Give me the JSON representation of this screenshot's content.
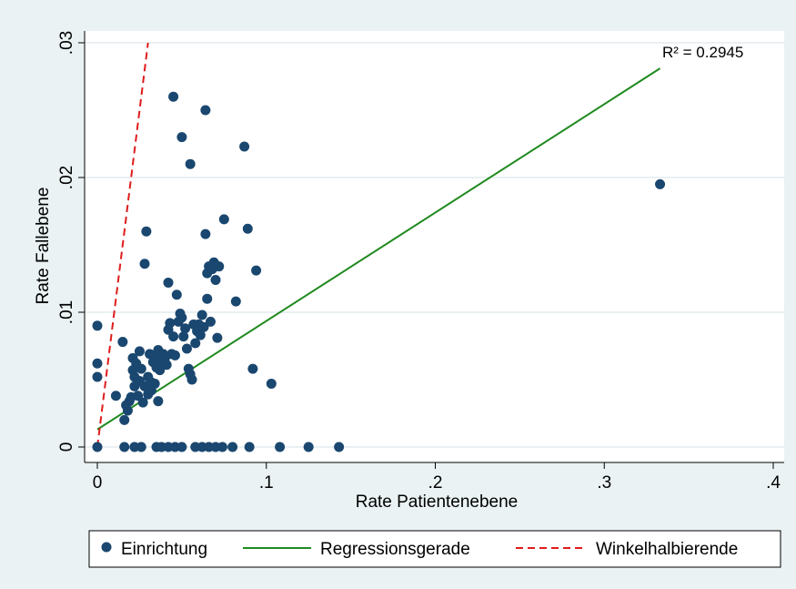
{
  "chart_data": {
    "type": "scatter",
    "xlabel": "Rate Patientenebene",
    "ylabel": "Rate Fallebene",
    "xlim": [
      0,
      0.4
    ],
    "ylim": [
      0,
      0.03
    ],
    "x_ticks": [
      "0",
      ".1",
      ".2",
      ".3",
      ".4"
    ],
    "y_ticks": [
      "0",
      ".01",
      ".02",
      ".03"
    ],
    "annotation": {
      "text": "R² =  0.2945"
    },
    "legend_position": "bottom",
    "series": [
      {
        "name": "Einrichtung",
        "kind": "scatter",
        "color": "#1a476f",
        "points": [
          [
            0.0,
            0.0
          ],
          [
            0.0,
            0.0052
          ],
          [
            0.0,
            0.0062
          ],
          [
            0.0,
            0.009
          ],
          [
            0.016,
            0.0
          ],
          [
            0.022,
            0.0
          ],
          [
            0.026,
            0.0
          ],
          [
            0.035,
            0.0
          ],
          [
            0.038,
            0.0
          ],
          [
            0.042,
            0.0
          ],
          [
            0.046,
            0.0
          ],
          [
            0.05,
            0.0
          ],
          [
            0.058,
            0.0
          ],
          [
            0.062,
            0.0
          ],
          [
            0.066,
            0.0
          ],
          [
            0.07,
            0.0
          ],
          [
            0.074,
            0.0
          ],
          [
            0.08,
            0.0
          ],
          [
            0.09,
            0.0
          ],
          [
            0.108,
            0.0
          ],
          [
            0.125,
            0.0
          ],
          [
            0.143,
            0.0
          ],
          [
            0.011,
            0.0038
          ],
          [
            0.015,
            0.0078
          ],
          [
            0.016,
            0.002
          ],
          [
            0.017,
            0.0031
          ],
          [
            0.018,
            0.0027
          ],
          [
            0.019,
            0.0034
          ],
          [
            0.02,
            0.0037
          ],
          [
            0.021,
            0.0066
          ],
          [
            0.021,
            0.0057
          ],
          [
            0.022,
            0.0052
          ],
          [
            0.022,
            0.0045
          ],
          [
            0.023,
            0.0062
          ],
          [
            0.024,
            0.0038
          ],
          [
            0.025,
            0.0071
          ],
          [
            0.025,
            0.0049
          ],
          [
            0.026,
            0.0058
          ],
          [
            0.027,
            0.0033
          ],
          [
            0.028,
            0.0045
          ],
          [
            0.028,
            0.0136
          ],
          [
            0.029,
            0.016
          ],
          [
            0.03,
            0.0052
          ],
          [
            0.03,
            0.0039
          ],
          [
            0.031,
            0.0069
          ],
          [
            0.032,
            0.0048
          ],
          [
            0.032,
            0.0042
          ],
          [
            0.033,
            0.0063
          ],
          [
            0.034,
            0.0047
          ],
          [
            0.035,
            0.0067
          ],
          [
            0.035,
            0.0059
          ],
          [
            0.036,
            0.0072
          ],
          [
            0.036,
            0.0034
          ],
          [
            0.037,
            0.0063
          ],
          [
            0.037,
            0.0057
          ],
          [
            0.038,
            0.0064
          ],
          [
            0.039,
            0.0069
          ],
          [
            0.04,
            0.0066
          ],
          [
            0.041,
            0.0061
          ],
          [
            0.042,
            0.0087
          ],
          [
            0.042,
            0.0122
          ],
          [
            0.043,
            0.0092
          ],
          [
            0.044,
            0.0069
          ],
          [
            0.045,
            0.0082
          ],
          [
            0.045,
            0.026
          ],
          [
            0.046,
            0.0068
          ],
          [
            0.047,
            0.0113
          ],
          [
            0.048,
            0.0093
          ],
          [
            0.049,
            0.0099
          ],
          [
            0.05,
            0.0096
          ],
          [
            0.05,
            0.023
          ],
          [
            0.051,
            0.0082
          ],
          [
            0.052,
            0.0088
          ],
          [
            0.053,
            0.0073
          ],
          [
            0.054,
            0.0058
          ],
          [
            0.055,
            0.0054
          ],
          [
            0.055,
            0.021
          ],
          [
            0.056,
            0.005
          ],
          [
            0.057,
            0.0091
          ],
          [
            0.058,
            0.0077
          ],
          [
            0.059,
            0.0086
          ],
          [
            0.06,
            0.0091
          ],
          [
            0.061,
            0.0083
          ],
          [
            0.062,
            0.0098
          ],
          [
            0.063,
            0.0089
          ],
          [
            0.064,
            0.0158
          ],
          [
            0.064,
            0.025
          ],
          [
            0.065,
            0.0129
          ],
          [
            0.065,
            0.011
          ],
          [
            0.066,
            0.0134
          ],
          [
            0.067,
            0.0093
          ],
          [
            0.068,
            0.0132
          ],
          [
            0.069,
            0.0137
          ],
          [
            0.07,
            0.0124
          ],
          [
            0.071,
            0.0081
          ],
          [
            0.072,
            0.0134
          ],
          [
            0.075,
            0.0169
          ],
          [
            0.082,
            0.0108
          ],
          [
            0.087,
            0.0223
          ],
          [
            0.089,
            0.0162
          ],
          [
            0.092,
            0.0058
          ],
          [
            0.094,
            0.0131
          ],
          [
            0.103,
            0.0047
          ],
          [
            0.333,
            0.0195
          ]
        ]
      },
      {
        "name": "Regressionsgerade",
        "kind": "line",
        "color": "#1f8a1f",
        "x": [
          0.0,
          0.333
        ],
        "y": [
          0.0013,
          0.0281
        ]
      },
      {
        "name": "Winkelhalbierende",
        "kind": "line",
        "color": "#e01b1b",
        "dash": true,
        "x": [
          0.0,
          0.03
        ],
        "y": [
          0.0,
          0.03
        ]
      }
    ]
  }
}
